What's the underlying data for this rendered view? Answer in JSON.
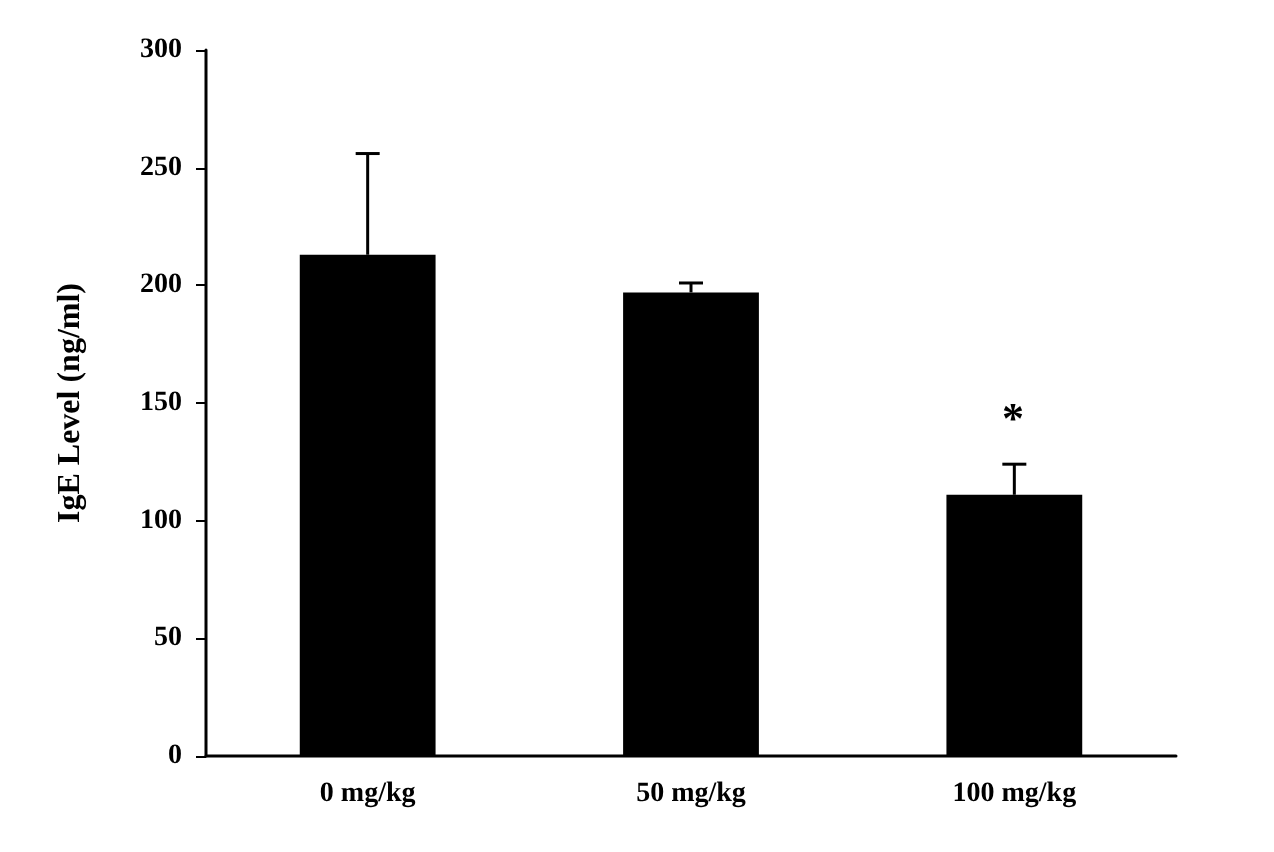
{
  "chart_data": {
    "type": "bar",
    "ylabel": "IgE Level (ng/ml)",
    "categories": [
      "0 mg/kg",
      "50 mg/kg",
      "100 mg/kg"
    ],
    "values": [
      213,
      197,
      111
    ],
    "color": "#000000",
    "errors": [
      [
        213,
        256
      ],
      [
        197,
        201
      ],
      [
        111,
        124
      ]
    ],
    "ylim": [
      0,
      300
    ],
    "yticks": [
      0,
      50,
      100,
      150,
      200,
      250,
      300
    ],
    "grid": false,
    "annotations": [
      "*"
    ]
  }
}
